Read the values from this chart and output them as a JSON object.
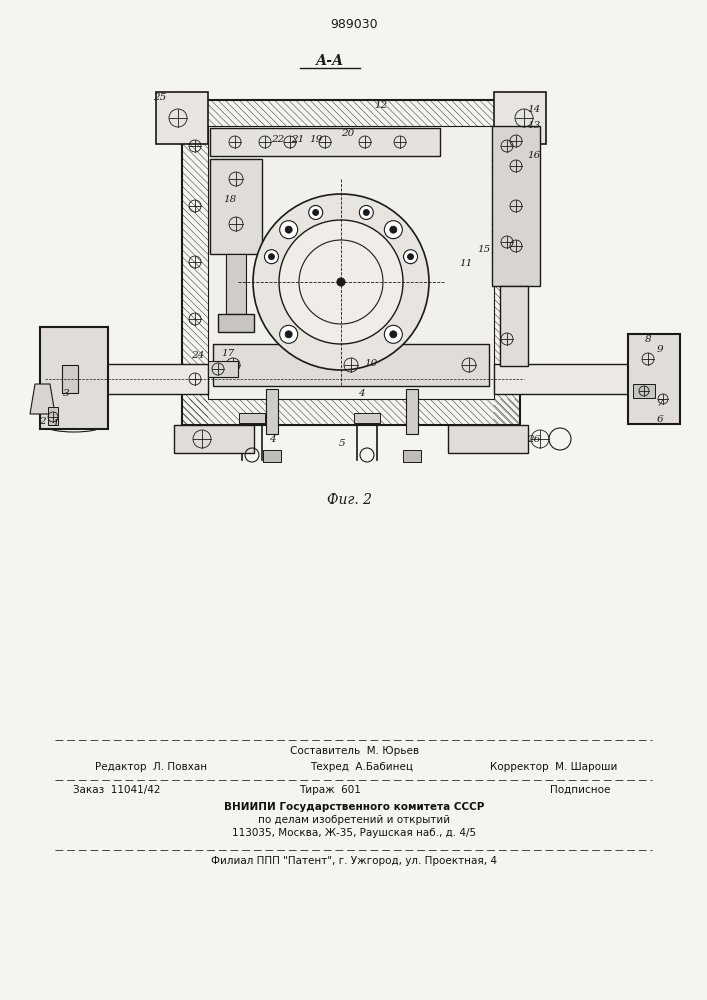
{
  "patent_number": "989030",
  "section_label": "А-А",
  "figure_label": "Фиг. 2",
  "background_color": "#f5f5f0",
  "drawing_color": "#1a1a1a",
  "footer": {
    "row1_center": "Составитель  М. Юрьев",
    "row2_left": "Редактор  Л. Повхан",
    "row2_center": "Техред  А.Бабинец",
    "row2_right": "Корректор  М. Шароши",
    "row3_left": "Заказ  11041/42",
    "row3_center": "Тираж  601",
    "row3_right": "Подписное",
    "row4a": "ВНИИПИ Государственного комитета СССР",
    "row4b": "по делам изобретений и открытий",
    "row4c": "113035, Москва, Ж-35, Раушская наб., д. 4/5",
    "row5": "Филиал ППП \"Патент\", г. Ужгород, ул. Проектная, 4"
  }
}
